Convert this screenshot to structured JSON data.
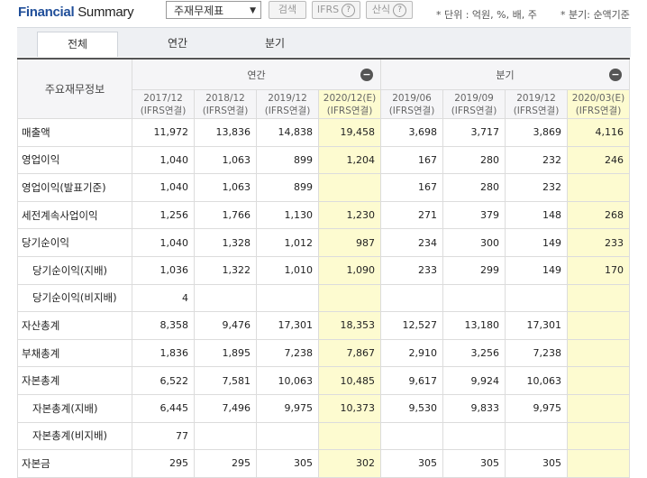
{
  "header": {
    "title_part1": "Financial",
    "title_part2": "Summary",
    "select_value": "주재무제표",
    "search_label": "검색",
    "ifrs_label": "IFRS",
    "calc_label": "산식",
    "help_glyph": "?",
    "unit_note": "* 단위 : 억원, %, 배, 주",
    "period_note": "* 분기: 순액기준"
  },
  "tabs": [
    {
      "label": "전체",
      "active": true
    },
    {
      "label": "연간",
      "active": false
    },
    {
      "label": "분기",
      "active": false
    }
  ],
  "table": {
    "corner_label": "주요재무정보",
    "annual_label": "연간",
    "quarter_label": "분기",
    "collapse_glyph": "−",
    "columns": [
      {
        "period": "2017/12",
        "basis": "(IFRS연결)",
        "highlight": false
      },
      {
        "period": "2018/12",
        "basis": "(IFRS연결)",
        "highlight": false
      },
      {
        "period": "2019/12",
        "basis": "(IFRS연결)",
        "highlight": false
      },
      {
        "period": "2020/12(E)",
        "basis": "(IFRS연결)",
        "highlight": true
      },
      {
        "period": "2019/06",
        "basis": "(IFRS연결)",
        "highlight": false
      },
      {
        "period": "2019/09",
        "basis": "(IFRS연결)",
        "highlight": false
      },
      {
        "period": "2019/12",
        "basis": "(IFRS연결)",
        "highlight": false
      },
      {
        "period": "2020/03(E)",
        "basis": "(IFRS연결)",
        "highlight": true
      }
    ],
    "rows": [
      {
        "label": "매출액",
        "sub": false,
        "values": [
          "11,972",
          "13,836",
          "14,838",
          "19,458",
          "3,698",
          "3,717",
          "3,869",
          "4,116"
        ]
      },
      {
        "label": "영업이익",
        "sub": false,
        "values": [
          "1,040",
          "1,063",
          "899",
          "1,204",
          "167",
          "280",
          "232",
          "246"
        ]
      },
      {
        "label": "영업이익(발표기준)",
        "sub": false,
        "values": [
          "1,040",
          "1,063",
          "899",
          "",
          "167",
          "280",
          "232",
          ""
        ]
      },
      {
        "label": "세전계속사업이익",
        "sub": false,
        "values": [
          "1,256",
          "1,766",
          "1,130",
          "1,230",
          "271",
          "379",
          "148",
          "268"
        ]
      },
      {
        "label": "당기순이익",
        "sub": false,
        "values": [
          "1,040",
          "1,328",
          "1,012",
          "987",
          "234",
          "300",
          "149",
          "233"
        ]
      },
      {
        "label": "당기순이익(지배)",
        "sub": true,
        "values": [
          "1,036",
          "1,322",
          "1,010",
          "1,090",
          "233",
          "299",
          "149",
          "170"
        ]
      },
      {
        "label": "당기순이익(비지배)",
        "sub": true,
        "values": [
          "4",
          "",
          "",
          "",
          "",
          "",
          "",
          ""
        ]
      },
      {
        "label": "자산총계",
        "sub": false,
        "values": [
          "8,358",
          "9,476",
          "17,301",
          "18,353",
          "12,527",
          "13,180",
          "17,301",
          ""
        ]
      },
      {
        "label": "부채총계",
        "sub": false,
        "values": [
          "1,836",
          "1,895",
          "7,238",
          "7,867",
          "2,910",
          "3,256",
          "7,238",
          ""
        ]
      },
      {
        "label": "자본총계",
        "sub": false,
        "values": [
          "6,522",
          "7,581",
          "10,063",
          "10,485",
          "9,617",
          "9,924",
          "10,063",
          ""
        ]
      },
      {
        "label": "자본총계(지배)",
        "sub": true,
        "values": [
          "6,445",
          "7,496",
          "9,975",
          "10,373",
          "9,530",
          "9,833",
          "9,975",
          ""
        ]
      },
      {
        "label": "자본총계(비지배)",
        "sub": true,
        "values": [
          "77",
          "",
          "",
          "",
          "",
          "",
          "",
          ""
        ]
      },
      {
        "label": "자본금",
        "sub": false,
        "values": [
          "295",
          "295",
          "305",
          "302",
          "305",
          "305",
          "305",
          ""
        ]
      }
    ]
  }
}
